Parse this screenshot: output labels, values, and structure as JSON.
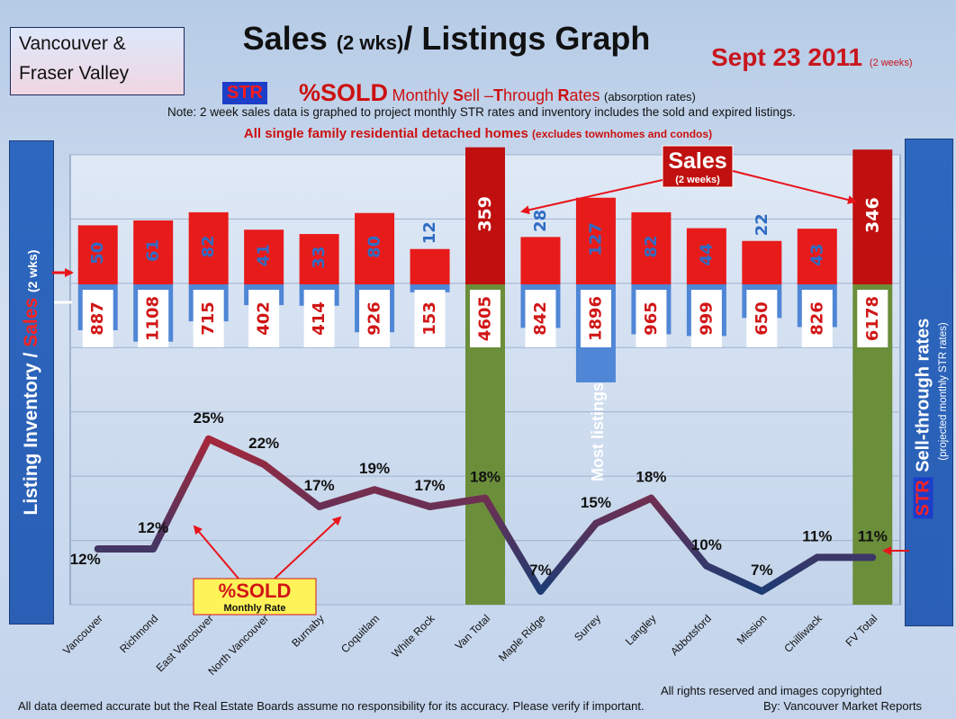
{
  "region": {
    "line1": "Vancouver &",
    "line2": "Fraser Valley"
  },
  "title": {
    "main": "Sales",
    "paren": "(2 wks)",
    "rest": "/ Listings Graph"
  },
  "date": {
    "main": "Sept 23 2011",
    "note": "(2 weeks)"
  },
  "str_header": {
    "badge": "STR",
    "sold": "%SOLD",
    "monthly": "Monthly",
    "s": "S",
    "ell": "ell –",
    "t": "T",
    "hrough": "hrough",
    "r": "R",
    "ates": "ates",
    "abs": "(absorption rates)"
  },
  "note": "Note: 2 week sales data is graphed to project monthly STR rates and inventory includes the sold and expired listings.",
  "subtitle": {
    "main": "All single family residential detached homes",
    "paren": "(excludes townhomes and condos)"
  },
  "left_axis": {
    "listing": "Listing Inventory /",
    "sales": "Sales",
    "wks": "(2 wks)"
  },
  "right_axis": {
    "str": "STR",
    "sell": "Sell-through rates",
    "proj": "(projected monthly STR rates)"
  },
  "callouts": {
    "sales": "Sales",
    "sales_sub": "(2 weeks)",
    "sold": "%SOLD",
    "sold_sub": "Monthly Rate",
    "most": "Most listings"
  },
  "footer": {
    "disclaimer": "All data deemed accurate but the Real Estate Boards assume no responsibility for its accuracy.  Please verify if important.",
    "rights": "All rights reserved and  images copyrighted",
    "by": "By: Vancouver Market Reports"
  },
  "colors": {
    "inventory": "#4f86d6",
    "total": "#6b8e3b",
    "sales": "#e81b1b",
    "total_sales": "#c00f0f",
    "str_low": "#1f3b73",
    "str_high": "#a3283c"
  },
  "chart_data": {
    "type": "bar",
    "categories": [
      "Vancouver",
      "Richmond",
      "East Vancouver",
      "North Vancouver",
      "Burnaby",
      "Coquitlam",
      "White Rock",
      "Van Total",
      "Maple Ridge",
      "Surrey",
      "Langley",
      "Abbotsford",
      "Mission",
      "Chilliwack",
      "FV Total"
    ],
    "series": [
      {
        "name": "Listing Inventory",
        "values": [
          887,
          1108,
          715,
          402,
          414,
          926,
          153,
          4605,
          842,
          1896,
          965,
          999,
          650,
          826,
          6178
        ]
      },
      {
        "name": "Sales",
        "values": [
          50,
          61,
          82,
          41,
          33,
          80,
          12,
          359,
          28,
          127,
          82,
          44,
          22,
          43,
          346
        ]
      },
      {
        "name": "STR",
        "values": [
          12,
          12,
          25,
          22,
          17,
          19,
          17,
          18,
          7,
          15,
          18,
          10,
          7,
          11,
          11
        ]
      }
    ],
    "str_labels": [
      "12%",
      "12%",
      "25%",
      "22%",
      "17%",
      "19%",
      "17%",
      "18%",
      "7%",
      "15%",
      "18%",
      "10%",
      "7%",
      "11%",
      "11%"
    ],
    "totals": [
      "Van Total",
      "FV Total"
    ],
    "grid": true
  }
}
